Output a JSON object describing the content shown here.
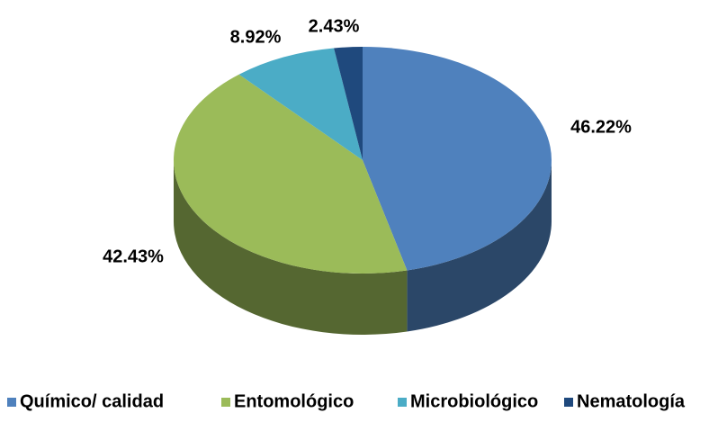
{
  "chart_data": {
    "type": "pie3d",
    "categories": [
      "Químico/ calidad",
      "Entomológico",
      "Microbiológico",
      "Nematología"
    ],
    "values": [
      46.22,
      42.43,
      8.92,
      2.43
    ],
    "value_labels": [
      "46.22%",
      "42.43%",
      "8.92%",
      "2.43%"
    ],
    "colors": [
      "#4f81bd",
      "#9bbb59",
      "#4bacc6",
      "#1f497d"
    ],
    "legend": "bottom"
  }
}
